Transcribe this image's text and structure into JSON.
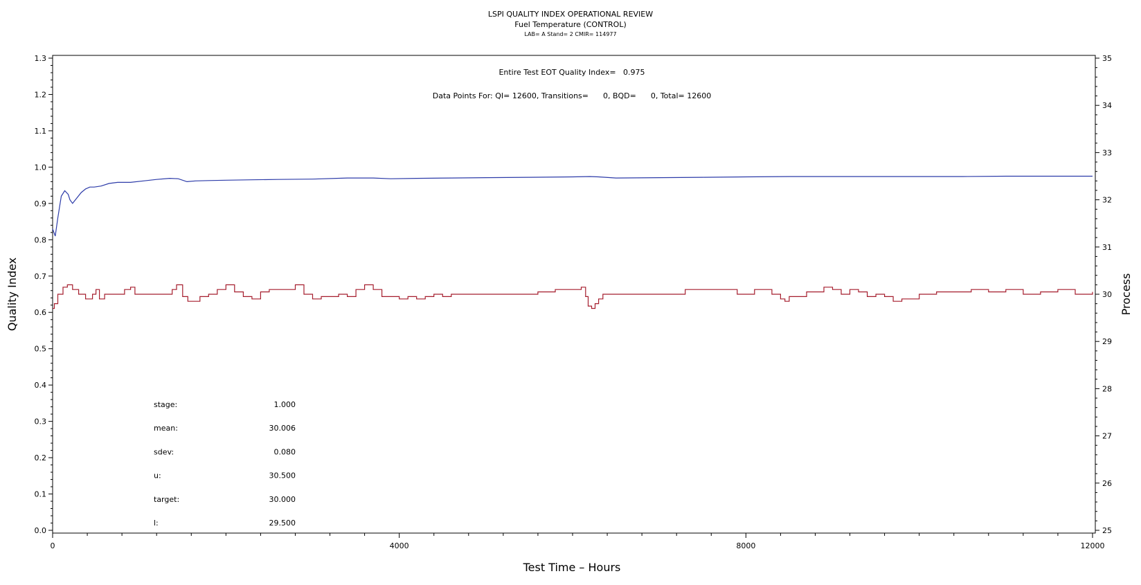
{
  "chart_data": {
    "type": "line",
    "title": "LSPI QUALITY INDEX OPERATIONAL REVIEW",
    "subtitle": "Fuel Temperature (CONTROL)",
    "subtitle2": "LAB= A Stand= 2 CMIR= 114977",
    "xlabel": "Test Time – Hours",
    "ylabel_left": "Quality Index",
    "ylabel_right": "Process",
    "xlim": [
      0,
      12000
    ],
    "ylim_left": [
      0.0,
      1.3
    ],
    "ylim_right": [
      25,
      35
    ],
    "x_ticks": [
      "0",
      "4000",
      "8000",
      "12000"
    ],
    "y_left_ticks": [
      "0.0",
      "0.1",
      "0.2",
      "0.3",
      "0.4",
      "0.5",
      "0.6",
      "0.7",
      "0.8",
      "0.9",
      "1.0",
      "1.1",
      "1.2",
      "1.3"
    ],
    "y_right_ticks": [
      "25",
      "26",
      "27",
      "28",
      "29",
      "30",
      "31",
      "32",
      "33",
      "34",
      "35"
    ],
    "annotation_qi": "Entire Test EOT Quality Index=   0.975",
    "annotation_points": "Data Points For: QI= 12600, Transitions=      0, BQD=      0, Total= 12600",
    "stats": [
      {
        "label": "stage:",
        "value": "1.000"
      },
      {
        "label": "mean:",
        "value": "30.006"
      },
      {
        "label": "sdev:",
        "value": "0.080"
      },
      {
        "label": "u:",
        "value": "30.500"
      },
      {
        "label": "target:",
        "value": "30.000"
      },
      {
        "label": "l:",
        "value": "29.500"
      }
    ],
    "series": [
      {
        "axis": "left",
        "color": "#2b3aa8",
        "x": [
          0,
          30,
          60,
          100,
          140,
          180,
          200,
          230,
          280,
          330,
          380,
          430,
          480,
          560,
          650,
          750,
          900,
          1050,
          1200,
          1350,
          1450,
          1550,
          1650,
          1800,
          2000,
          2300,
          2600,
          3000,
          3400,
          3700,
          3900,
          4200,
          4600,
          5000,
          5500,
          6000,
          6200,
          6300,
          6500,
          7000,
          7500,
          8000,
          8500,
          9000,
          9500,
          10000,
          10500,
          11000,
          11500,
          12000
        ],
        "y": [
          0.83,
          0.81,
          0.86,
          0.92,
          0.935,
          0.925,
          0.91,
          0.9,
          0.915,
          0.93,
          0.94,
          0.945,
          0.945,
          0.948,
          0.955,
          0.958,
          0.958,
          0.962,
          0.966,
          0.969,
          0.968,
          0.96,
          0.962,
          0.963,
          0.964,
          0.965,
          0.966,
          0.967,
          0.97,
          0.97,
          0.968,
          0.969,
          0.97,
          0.971,
          0.972,
          0.973,
          0.974,
          0.973,
          0.97,
          0.971,
          0.972,
          0.973,
          0.974,
          0.974,
          0.974,
          0.974,
          0.974,
          0.975,
          0.975,
          0.975
        ]
      },
      {
        "axis": "right",
        "color": "#a51c2c",
        "x": [
          0,
          20,
          60,
          120,
          170,
          230,
          300,
          380,
          460,
          500,
          540,
          600,
          680,
          760,
          830,
          900,
          950,
          1000,
          1100,
          1200,
          1300,
          1380,
          1430,
          1500,
          1560,
          1640,
          1700,
          1800,
          1900,
          2000,
          2100,
          2200,
          2300,
          2400,
          2500,
          2600,
          2700,
          2800,
          2900,
          3000,
          3100,
          3200,
          3300,
          3400,
          3500,
          3600,
          3700,
          3800,
          3900,
          4000,
          4100,
          4200,
          4300,
          4400,
          4500,
          4600,
          4800,
          5000,
          5200,
          5400,
          5600,
          5800,
          6000,
          6100,
          6150,
          6180,
          6220,
          6260,
          6300,
          6350,
          6400,
          6500,
          6700,
          7000,
          7300,
          7600,
          7900,
          8100,
          8300,
          8400,
          8450,
          8500,
          8600,
          8700,
          8800,
          8900,
          9000,
          9100,
          9200,
          9300,
          9400,
          9500,
          9600,
          9700,
          9750,
          9800,
          9900,
          10000,
          10200,
          10400,
          10600,
          10800,
          11000,
          11200,
          11400,
          11600,
          11800,
          12000
        ],
        "y": [
          29.7,
          29.8,
          30.0,
          30.15,
          30.2,
          30.1,
          30.0,
          29.9,
          30.0,
          30.1,
          29.9,
          30.0,
          30.0,
          30.0,
          30.1,
          30.15,
          30.0,
          30.0,
          30.0,
          30.0,
          30.0,
          30.1,
          30.2,
          29.95,
          29.85,
          29.85,
          29.95,
          30.0,
          30.1,
          30.2,
          30.05,
          29.95,
          29.9,
          30.05,
          30.1,
          30.1,
          30.1,
          30.2,
          30.0,
          29.9,
          29.95,
          29.95,
          30.0,
          29.95,
          30.1,
          30.2,
          30.1,
          29.95,
          29.95,
          29.9,
          29.95,
          29.9,
          29.95,
          30.0,
          29.95,
          30.0,
          30.0,
          30.0,
          30.0,
          30.0,
          30.05,
          30.1,
          30.1,
          30.15,
          29.95,
          29.75,
          29.7,
          29.8,
          29.9,
          30.0,
          30.0,
          30.0,
          30.0,
          30.0,
          30.1,
          30.1,
          30.0,
          30.1,
          30.0,
          29.9,
          29.85,
          29.95,
          29.95,
          30.05,
          30.05,
          30.15,
          30.1,
          30.0,
          30.1,
          30.05,
          29.95,
          30.0,
          29.95,
          29.85,
          29.85,
          29.9,
          29.9,
          30.0,
          30.05,
          30.05,
          30.1,
          30.05,
          30.1,
          30.0,
          30.05,
          30.1,
          30.0,
          30.05
        ]
      }
    ]
  }
}
